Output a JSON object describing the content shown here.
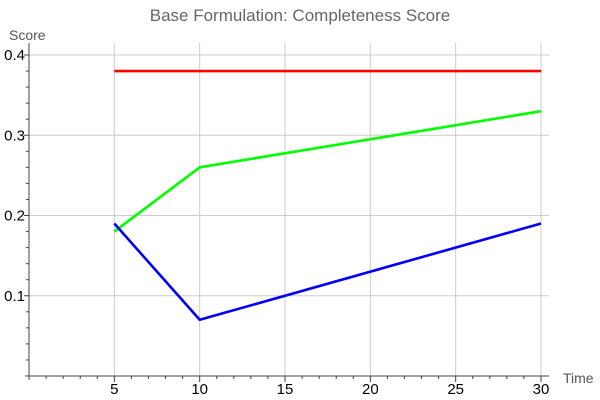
{
  "chart_data": {
    "type": "line",
    "title": "Base Formulation: Completeness Score",
    "xlabel": "Time",
    "ylabel": "Score",
    "xlim": [
      0,
      30
    ],
    "ylim": [
      0,
      0.4
    ],
    "x_ticks": [
      5,
      10,
      15,
      20,
      25,
      30
    ],
    "x_tick_labels": [
      "5",
      "10",
      "15",
      "20",
      "25",
      "30"
    ],
    "y_ticks": [
      0.1,
      0.2,
      0.3,
      0.4
    ],
    "y_tick_labels": [
      "0.1",
      "0.2",
      "0.3",
      "0.4"
    ],
    "x_minor_step": 1,
    "y_minor_step": 0.02,
    "grid": true,
    "series": [
      {
        "color": "#ff0000",
        "x": [
          5,
          10,
          30
        ],
        "values": [
          0.38,
          0.38,
          0.38
        ]
      },
      {
        "color": "#00ff00",
        "x": [
          5,
          10,
          30
        ],
        "values": [
          0.18,
          0.26,
          0.33
        ]
      },
      {
        "color": "#0000ff",
        "x": [
          5,
          10,
          30
        ],
        "values": [
          0.19,
          0.07,
          0.19
        ]
      }
    ]
  }
}
